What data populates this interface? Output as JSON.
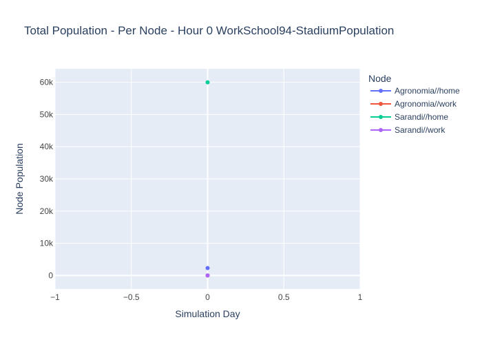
{
  "chart_data": {
    "type": "scatter",
    "title": "Total Population - Per Node - Hour 0 WorkSchool94-StadiumPopulation",
    "xlabel": "Simulation Day",
    "ylabel": "Node Population",
    "xlim": [
      -1,
      1
    ],
    "ylim": [
      -4200,
      64200
    ],
    "x_ticks": [
      -1,
      -0.5,
      0,
      0.5,
      1
    ],
    "x_tick_labels": [
      "−1",
      "−0.5",
      "0",
      "0.5",
      "1"
    ],
    "y_ticks": [
      0,
      10000,
      20000,
      30000,
      40000,
      50000,
      60000
    ],
    "y_tick_labels": [
      "0",
      "10k",
      "20k",
      "30k",
      "40k",
      "50k",
      "60k"
    ],
    "grid": true,
    "legend_title": "Node",
    "legend_position": "right",
    "series": [
      {
        "name": "Agronomia//home",
        "color": "#636efa",
        "x": [
          0
        ],
        "y": [
          2300
        ]
      },
      {
        "name": "Agronomia//work",
        "color": "#ef553b",
        "x": [
          0
        ],
        "y": [
          0
        ]
      },
      {
        "name": "Sarandi//home",
        "color": "#00cc96",
        "x": [
          0
        ],
        "y": [
          60000
        ]
      },
      {
        "name": "Sarandi//work",
        "color": "#ab63fa",
        "x": [
          0
        ],
        "y": [
          0
        ]
      }
    ]
  },
  "colors": {
    "plot_background": "#e5ecf6",
    "grid": "#ffffff",
    "text": "#2a3f5f",
    "tick_text": "#444444"
  }
}
